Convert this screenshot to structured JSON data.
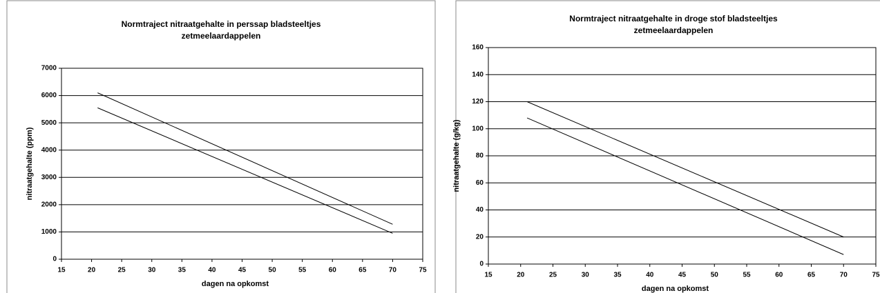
{
  "chart_data": [
    {
      "type": "line",
      "title": [
        "Normtraject nitraatgehalte in perssap bladsteeltjes",
        "zetmeelaardappelen"
      ],
      "x_label": "dagen na opkomst",
      "y_label": "nitraatgehalte (ppm)",
      "xlim": [
        15,
        75
      ],
      "xticks": [
        15,
        20,
        25,
        30,
        35,
        40,
        45,
        50,
        55,
        60,
        65,
        70,
        75
      ],
      "ylim": [
        0,
        7000
      ],
      "yticks": [
        0,
        1000,
        2000,
        3000,
        4000,
        5000,
        6000,
        7000
      ],
      "grid": true,
      "x": [
        21,
        70
      ],
      "series": [
        {
          "color": "#000000",
          "values": [
            6100,
            1280
          ]
        },
        {
          "color": "#000000",
          "values": [
            5550,
            950
          ]
        }
      ]
    },
    {
      "type": "line",
      "title": [
        "Normtraject nitraatgehalte in droge stof bladsteeltjes",
        "zetmeelaardappelen"
      ],
      "x_label": "dagen na opkomst",
      "y_label": "nitraatgehalte (g/kg)",
      "xlim": [
        15,
        75
      ],
      "xticks": [
        15,
        20,
        25,
        30,
        35,
        40,
        45,
        50,
        55,
        60,
        65,
        70,
        75
      ],
      "ylim": [
        0,
        160
      ],
      "yticks": [
        0,
        20,
        40,
        60,
        80,
        100,
        120,
        140,
        160
      ],
      "grid": true,
      "x": [
        21,
        70
      ],
      "series": [
        {
          "color": "#000000",
          "values": [
            120,
            20
          ]
        },
        {
          "color": "#000000",
          "values": [
            108,
            7
          ]
        }
      ]
    }
  ]
}
